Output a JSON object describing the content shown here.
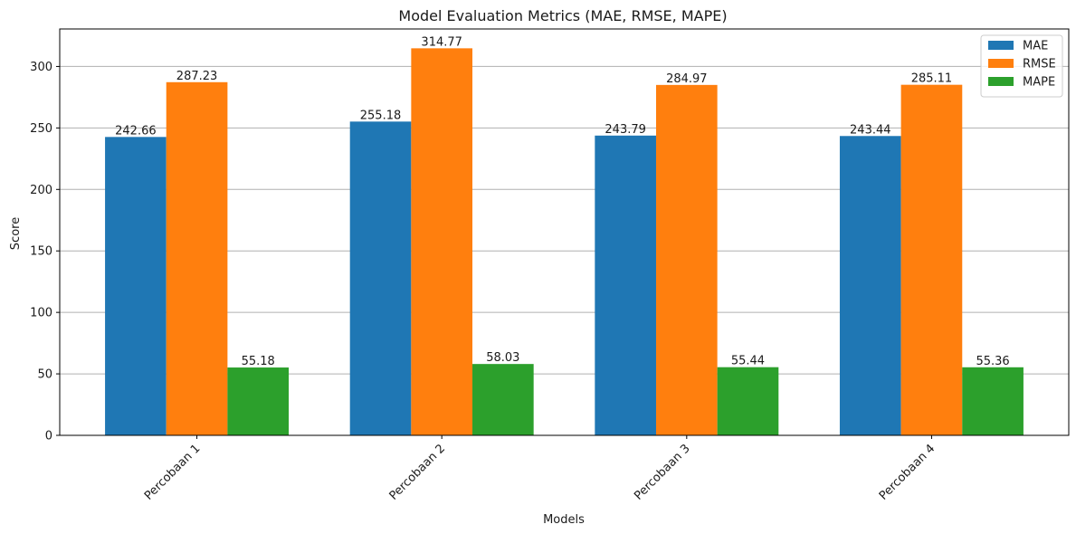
{
  "chart_data": {
    "type": "bar",
    "title": "Model Evaluation Metrics (MAE, RMSE, MAPE)",
    "xlabel": "Models",
    "ylabel": "Score",
    "categories": [
      "Percobaan 1",
      "Percobaan 2",
      "Percobaan 3",
      "Percobaan 4"
    ],
    "series": [
      {
        "name": "MAE",
        "color": "#1f77b4",
        "values": [
          242.66,
          255.18,
          243.79,
          243.44
        ],
        "labels": [
          "242.66",
          "255.18",
          "243.79",
          "243.44"
        ]
      },
      {
        "name": "RMSE",
        "color": "#ff7f0e",
        "values": [
          287.23,
          314.77,
          284.97,
          285.11
        ],
        "labels": [
          "287.23",
          "314.77",
          "284.97",
          "285.11"
        ]
      },
      {
        "name": "MAPE",
        "color": "#2ca02c",
        "values": [
          55.18,
          58.03,
          55.44,
          55.36
        ],
        "labels": [
          "55.18",
          "58.03",
          "55.44",
          "55.36"
        ]
      }
    ],
    "yticks": [
      0,
      50,
      100,
      150,
      200,
      250,
      300
    ],
    "ytick_labels": [
      "0",
      "50",
      "100",
      "150",
      "200",
      "250",
      "300"
    ],
    "ylim": [
      0,
      330.5
    ],
    "grid": "y",
    "legend_position": "top-right"
  }
}
